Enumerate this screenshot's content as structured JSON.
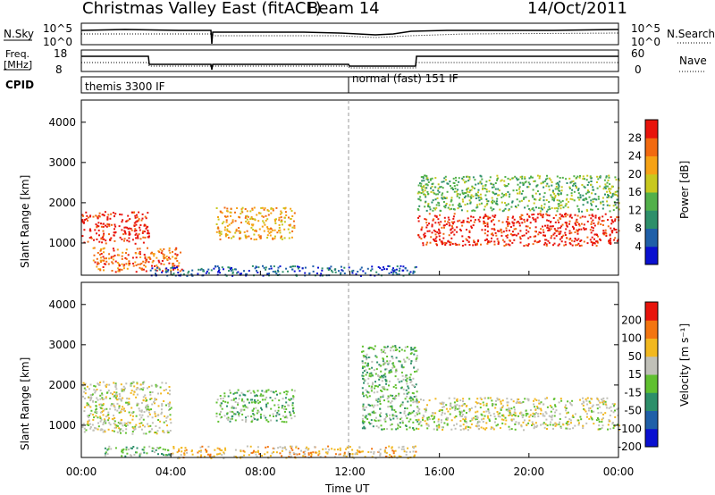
{
  "header": {
    "station": "Christmas Valley East (fitACF)",
    "beam": "Beam 14",
    "date": "14/Oct/2011"
  },
  "panels": {
    "nsky_label": "N.Sky",
    "nsearch_label": "N.Search",
    "freq_label_line1": "Freq.",
    "freq_label_line2": "[MHz]",
    "nave_label": "Nave",
    "cpid_label": "CPID",
    "nsky_ticks": [
      "10^5",
      "10^0"
    ],
    "freq_ticks": [
      "18",
      "8"
    ],
    "nave_ticks": [
      "60",
      "0"
    ],
    "cpid_modes": [
      "themis 3300 IF",
      "normal (fast) 151 IF"
    ]
  },
  "chart_data": [
    {
      "type": "heatmap",
      "id": "power",
      "ylabel": "Slant Range [km]",
      "xlabel": "",
      "y_ticks": [
        1000,
        2000,
        3000,
        4000
      ],
      "ylim": [
        200,
        4550
      ],
      "colorbar": {
        "title": "Power [dB]",
        "ticks": [
          "28",
          "24",
          "20",
          "16",
          "12",
          "8",
          "4"
        ],
        "colors": [
          "#0a10d0",
          "#1f5fa8",
          "#2d8f6a",
          "#52b04a",
          "#c8c81e",
          "#f6a215",
          "#f26a10",
          "#e8140c"
        ]
      },
      "features": [
        {
          "name": "low-range-band",
          "t_start": 0.0,
          "t_end": 3.0,
          "range_km": [
            1000,
            1800
          ],
          "level": 7
        },
        {
          "name": "descending-trace",
          "t_start": 0.5,
          "t_end": 4.5,
          "range_km": [
            300,
            900
          ],
          "level": 6
        },
        {
          "name": "mid-patch",
          "t_start": 6.0,
          "t_end": 9.5,
          "range_km": [
            1100,
            1900
          ],
          "level": 5
        },
        {
          "name": "evening-band",
          "t_start": 15.0,
          "t_end": 24.0,
          "range_km": [
            950,
            1750
          ],
          "level": 7
        },
        {
          "name": "upper-echoes",
          "t_start": 15.0,
          "t_end": 24.0,
          "range_km": [
            1800,
            2700
          ],
          "level": 3
        },
        {
          "name": "ground-scatter-floor",
          "t_start": 3.0,
          "t_end": 15.0,
          "range_km": [
            200,
            450
          ],
          "level": 1
        }
      ]
    },
    {
      "type": "heatmap",
      "id": "velocity",
      "ylabel": "Slant Range [km]",
      "xlabel": "Time UT",
      "y_ticks": [
        1000,
        2000,
        3000,
        4000
      ],
      "ylim": [
        200,
        4550
      ],
      "x_ticks": [
        "00:00",
        "04:00",
        "08:00",
        "12:00",
        "16:00",
        "20:00",
        "00:00"
      ],
      "colorbar": {
        "title": "Velocity [m s⁻¹]",
        "ticks": [
          "200",
          "100",
          "50",
          "15",
          "-15",
          "-50",
          "-100",
          "-200"
        ],
        "colors": [
          "#0a10d0",
          "#1f5fa8",
          "#2d8f6a",
          "#60c030",
          "#c0c0b8",
          "#f2b820",
          "#f37510",
          "#e8140c"
        ]
      },
      "features": [
        {
          "name": "grey-ground-scatter",
          "t_start": 0.0,
          "t_end": 4.0,
          "range_km": [
            800,
            2100
          ],
          "level": 4
        },
        {
          "name": "green-patch",
          "t_start": 6.0,
          "t_end": 9.5,
          "range_km": [
            1100,
            1900
          ],
          "level": 3
        },
        {
          "name": "green-streak",
          "t_start": 12.5,
          "t_end": 15.0,
          "range_km": [
            900,
            3000
          ],
          "level": 3
        },
        {
          "name": "grey-evening",
          "t_start": 15.0,
          "t_end": 24.0,
          "range_km": [
            900,
            1700
          ],
          "level": 4
        },
        {
          "name": "green-low",
          "t_start": 1.0,
          "t_end": 4.0,
          "range_km": [
            250,
            500
          ],
          "level": 3
        },
        {
          "name": "orange-floor",
          "t_start": 4.0,
          "t_end": 15.0,
          "range_km": [
            200,
            500
          ],
          "level": 5
        }
      ]
    }
  ]
}
